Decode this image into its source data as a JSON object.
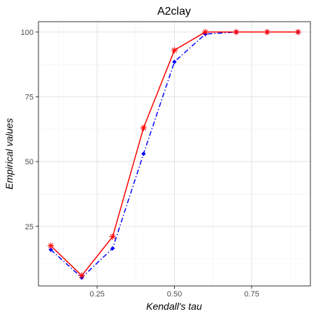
{
  "chart_data": {
    "type": "line",
    "title": "A2clay",
    "xlabel": "Kendall's tau",
    "ylabel": "Empirical values",
    "xlim": [
      0.06,
      0.94
    ],
    "ylim": [
      2,
      104
    ],
    "x_ticks": [
      0.25,
      0.5,
      0.75
    ],
    "x_tick_labels": [
      "0.25",
      "0.50",
      "0.75"
    ],
    "y_ticks": [
      25,
      50,
      75,
      100
    ],
    "y_tick_labels": [
      "25",
      "50",
      "75",
      "100"
    ],
    "grid": true,
    "x": [
      0.1,
      0.2,
      0.3,
      0.4,
      0.5,
      0.6,
      0.7,
      0.8,
      0.9
    ],
    "series": [
      {
        "values": [
          16,
          5.2,
          16.5,
          53,
          88.5,
          99.2,
          100,
          100,
          100
        ],
        "color": "#0000ff",
        "line_style": "dashdot",
        "marker": "diamond"
      },
      {
        "values": [
          17.5,
          6,
          21,
          63,
          93,
          100,
          100,
          100,
          100
        ],
        "color": "#ff0000",
        "line_style": "solid",
        "marker": "asterisk"
      }
    ]
  }
}
